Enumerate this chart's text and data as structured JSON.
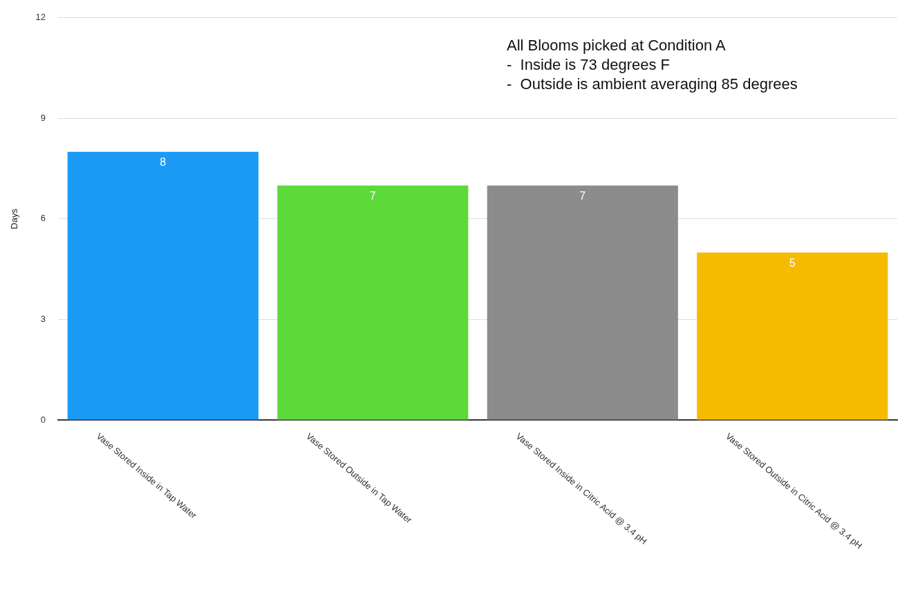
{
  "chart_data": {
    "type": "bar",
    "ylabel": "Days",
    "categories": [
      "Vase Stored Inside in Tap Water",
      "Vase Stored Outside in Tap Water",
      "Vase Stored Inside in Citric Acid @ 3.4 pH",
      "Vase Stored Outside in Citric Acid @ 3.4 pH"
    ],
    "values": [
      8,
      7,
      7,
      5
    ],
    "colors": [
      "#1a9af5",
      "#5dd93a",
      "#8c8c8c",
      "#f5bb00"
    ],
    "ylim": [
      0,
      12
    ],
    "yticks": [
      0,
      3,
      6,
      9,
      12
    ],
    "grid": "y",
    "legend": false,
    "data_labels": true,
    "annotations": [
      "All Blooms picked at Condition A",
      "-  Inside is 73 degrees F",
      "-  Outside is ambient averaging 85 degrees"
    ]
  }
}
